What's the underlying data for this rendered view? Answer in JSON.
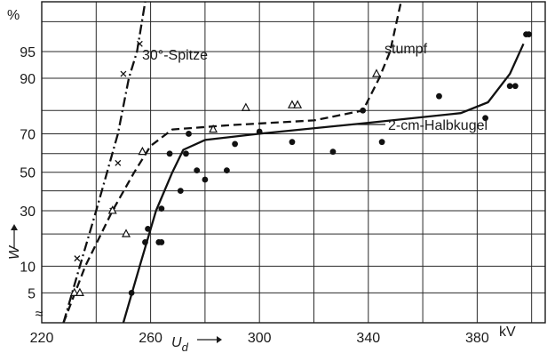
{
  "chart_data": {
    "type": "line",
    "x_unit": "kV",
    "y_unit": "%",
    "xlim": [
      220,
      405
    ],
    "ylim": [
      2,
      99
    ],
    "y_scale": "probability",
    "grid": true,
    "x_ticks": [
      220,
      260,
      300,
      340,
      380
    ],
    "y_ticks": [
      5,
      10,
      30,
      50,
      70,
      90,
      95
    ],
    "xlabel": "U",
    "xlabel_sub": "d",
    "ylabel": "W",
    "break_symbol": "≈",
    "series": [
      {
        "name": "30°-Spitze",
        "line_style": "dashdot",
        "marker": "x",
        "curve": [
          [
            228,
            2
          ],
          [
            234,
            10
          ],
          [
            240,
            30
          ],
          [
            244,
            50
          ],
          [
            248,
            70
          ],
          [
            252,
            90
          ],
          [
            255,
            95
          ],
          [
            258,
            99
          ]
        ],
        "points": [
          [
            233,
            12
          ],
          [
            246,
            30
          ],
          [
            248,
            55
          ],
          [
            250,
            91
          ],
          [
            256,
            96
          ]
        ]
      },
      {
        "name": "stumpf",
        "line_style": "dashed",
        "marker": "triangle",
        "curve": [
          [
            228,
            2
          ],
          [
            236,
            10
          ],
          [
            246,
            30
          ],
          [
            254,
            50
          ],
          [
            260,
            64
          ],
          [
            268,
            72
          ],
          [
            290,
            74
          ],
          [
            320,
            76
          ],
          [
            338,
            80
          ],
          [
            344,
            90
          ],
          [
            348,
            95
          ],
          [
            352,
            99
          ]
        ],
        "points": [
          [
            232,
            5
          ],
          [
            234,
            5
          ],
          [
            246,
            30
          ],
          [
            251,
            20
          ],
          [
            257,
            61
          ],
          [
            283,
            72
          ],
          [
            295,
            81
          ],
          [
            312,
            82
          ],
          [
            314,
            82
          ],
          [
            343,
            91
          ]
        ]
      },
      {
        "name": "2-cm-Halbkugel",
        "line_style": "solid",
        "marker": "dot",
        "curve": [
          [
            250,
            2
          ],
          [
            256,
            10
          ],
          [
            262,
            30
          ],
          [
            268,
            50
          ],
          [
            272,
            62
          ],
          [
            280,
            67
          ],
          [
            300,
            70
          ],
          [
            340,
            75
          ],
          [
            374,
            79
          ],
          [
            384,
            83
          ],
          [
            392,
            91
          ],
          [
            397,
            96
          ]
        ],
        "points": [
          [
            253,
            5
          ],
          [
            258,
            17
          ],
          [
            259,
            22
          ],
          [
            263,
            17
          ],
          [
            264,
            17
          ],
          [
            264,
            31
          ],
          [
            267,
            60
          ],
          [
            271,
            40
          ],
          [
            273,
            60
          ],
          [
            274,
            70
          ],
          [
            277,
            51
          ],
          [
            280,
            46
          ],
          [
            288,
            51
          ],
          [
            291,
            65
          ],
          [
            300,
            71
          ],
          [
            312,
            66
          ],
          [
            327,
            61
          ],
          [
            338,
            80
          ],
          [
            345,
            66
          ],
          [
            366,
            85
          ],
          [
            383,
            77
          ],
          [
            392,
            88
          ],
          [
            394,
            88
          ],
          [
            398,
            97
          ],
          [
            399,
            97
          ]
        ]
      }
    ]
  }
}
